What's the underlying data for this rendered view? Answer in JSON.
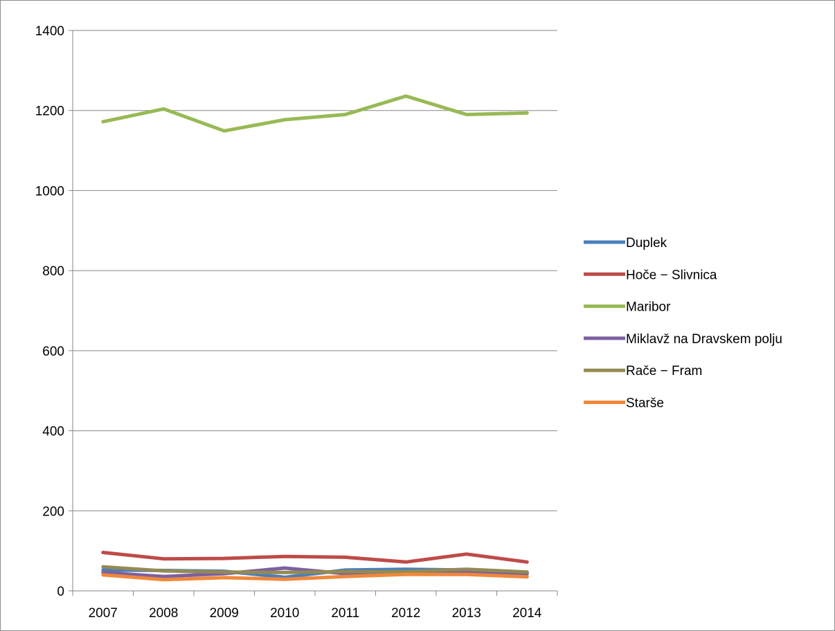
{
  "chart_data": {
    "type": "line",
    "title": "",
    "xlabel": "",
    "ylabel": "",
    "ylim": [
      0,
      1400
    ],
    "yticks": [
      "0",
      "200",
      "400",
      "600",
      "800",
      "1000",
      "1200",
      "1400"
    ],
    "categories": [
      "2007",
      "2008",
      "2009",
      "2010",
      "2011",
      "2012",
      "2013",
      "2014"
    ],
    "grid": true,
    "legend_position": "right",
    "series": [
      {
        "name": "Duplek",
        "color": "#4a7ebb",
        "values": [
          52,
          51,
          49,
          34,
          52,
          54,
          52,
          46
        ]
      },
      {
        "name": "Hoče − Slivnica",
        "color": "#be4b48",
        "values": [
          96,
          80,
          81,
          86,
          84,
          72,
          92,
          72
        ]
      },
      {
        "name": "Maribor",
        "color": "#98b954",
        "values": [
          1172,
          1204,
          1149,
          1177,
          1190,
          1236,
          1190,
          1194
        ]
      },
      {
        "name": "Miklavž na Dravskem polju",
        "color": "#7d60a0",
        "values": [
          46,
          36,
          43,
          57,
          43,
          45,
          46,
          42
        ]
      },
      {
        "name": "Rače − Fram",
        "color": "#948a54",
        "values": [
          60,
          50,
          47,
          46,
          48,
          48,
          54,
          47
        ]
      },
      {
        "name": "Starše",
        "color": "#f0883a",
        "values": [
          40,
          28,
          33,
          29,
          36,
          41,
          41,
          35
        ]
      }
    ]
  }
}
